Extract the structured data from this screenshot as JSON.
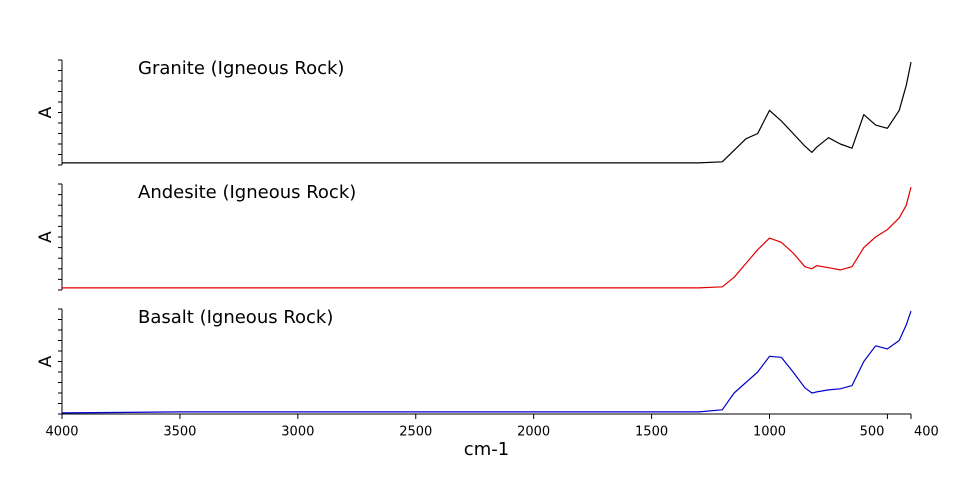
{
  "chart_data": [
    {
      "type": "line",
      "title": "Granite (Igneous Rock)",
      "ylabel": "A",
      "x": [
        4000,
        3500,
        3000,
        2500,
        2000,
        1500,
        1300,
        1200,
        1150,
        1100,
        1050,
        1000,
        950,
        900,
        850,
        820,
        800,
        750,
        700,
        650,
        600,
        550,
        500,
        450,
        420,
        400
      ],
      "values": [
        0.02,
        0.02,
        0.02,
        0.02,
        0.02,
        0.02,
        0.02,
        0.03,
        0.14,
        0.25,
        0.3,
        0.52,
        0.42,
        0.3,
        0.18,
        0.12,
        0.17,
        0.26,
        0.2,
        0.16,
        0.48,
        0.38,
        0.35,
        0.52,
        0.76,
        0.98
      ],
      "color": "#000000",
      "xlim": [
        4000,
        400
      ],
      "ylim": [
        0,
        1
      ],
      "yticks": [
        0,
        0.1,
        0.2,
        0.3,
        0.4,
        0.5,
        0.6,
        0.7,
        0.8,
        0.9,
        1
      ]
    },
    {
      "type": "line",
      "title": "Andesite (Igneous Rock)",
      "ylabel": "A",
      "x": [
        4000,
        3500,
        3000,
        2500,
        2000,
        1500,
        1300,
        1200,
        1150,
        1100,
        1050,
        1000,
        950,
        900,
        850,
        820,
        800,
        750,
        700,
        650,
        600,
        550,
        500,
        450,
        420,
        400
      ],
      "values": [
        0.02,
        0.02,
        0.02,
        0.02,
        0.02,
        0.02,
        0.02,
        0.03,
        0.12,
        0.25,
        0.38,
        0.49,
        0.45,
        0.35,
        0.22,
        0.2,
        0.23,
        0.21,
        0.19,
        0.22,
        0.4,
        0.5,
        0.57,
        0.68,
        0.8,
        0.97
      ],
      "color": "#e00000",
      "xlim": [
        4000,
        400
      ],
      "ylim": [
        0,
        1
      ],
      "yticks": [
        0,
        0.1,
        0.2,
        0.3,
        0.4,
        0.5,
        0.6,
        0.7,
        0.8,
        0.9,
        1
      ]
    },
    {
      "type": "line",
      "title": "Basalt (Igneous Rock)",
      "ylabel": "A",
      "xlabel": "cm-1",
      "x": [
        4000,
        3500,
        3000,
        2500,
        2000,
        1500,
        1300,
        1200,
        1150,
        1100,
        1050,
        1000,
        950,
        900,
        850,
        820,
        800,
        750,
        700,
        650,
        600,
        550,
        500,
        450,
        420,
        400
      ],
      "values": [
        0.01,
        0.02,
        0.02,
        0.02,
        0.02,
        0.02,
        0.02,
        0.04,
        0.2,
        0.3,
        0.4,
        0.55,
        0.54,
        0.4,
        0.25,
        0.2,
        0.21,
        0.23,
        0.24,
        0.27,
        0.5,
        0.65,
        0.62,
        0.7,
        0.85,
        0.98
      ],
      "color": "#0000cc",
      "xlim": [
        4000,
        400
      ],
      "ylim": [
        0,
        1
      ],
      "yticks": [
        0,
        0.1,
        0.2,
        0.3,
        0.4,
        0.5,
        0.6,
        0.7,
        0.8,
        0.9,
        1
      ],
      "xticks": [
        4000,
        3500,
        3000,
        2500,
        2000,
        1500,
        1000,
        500,
        400
      ]
    }
  ]
}
